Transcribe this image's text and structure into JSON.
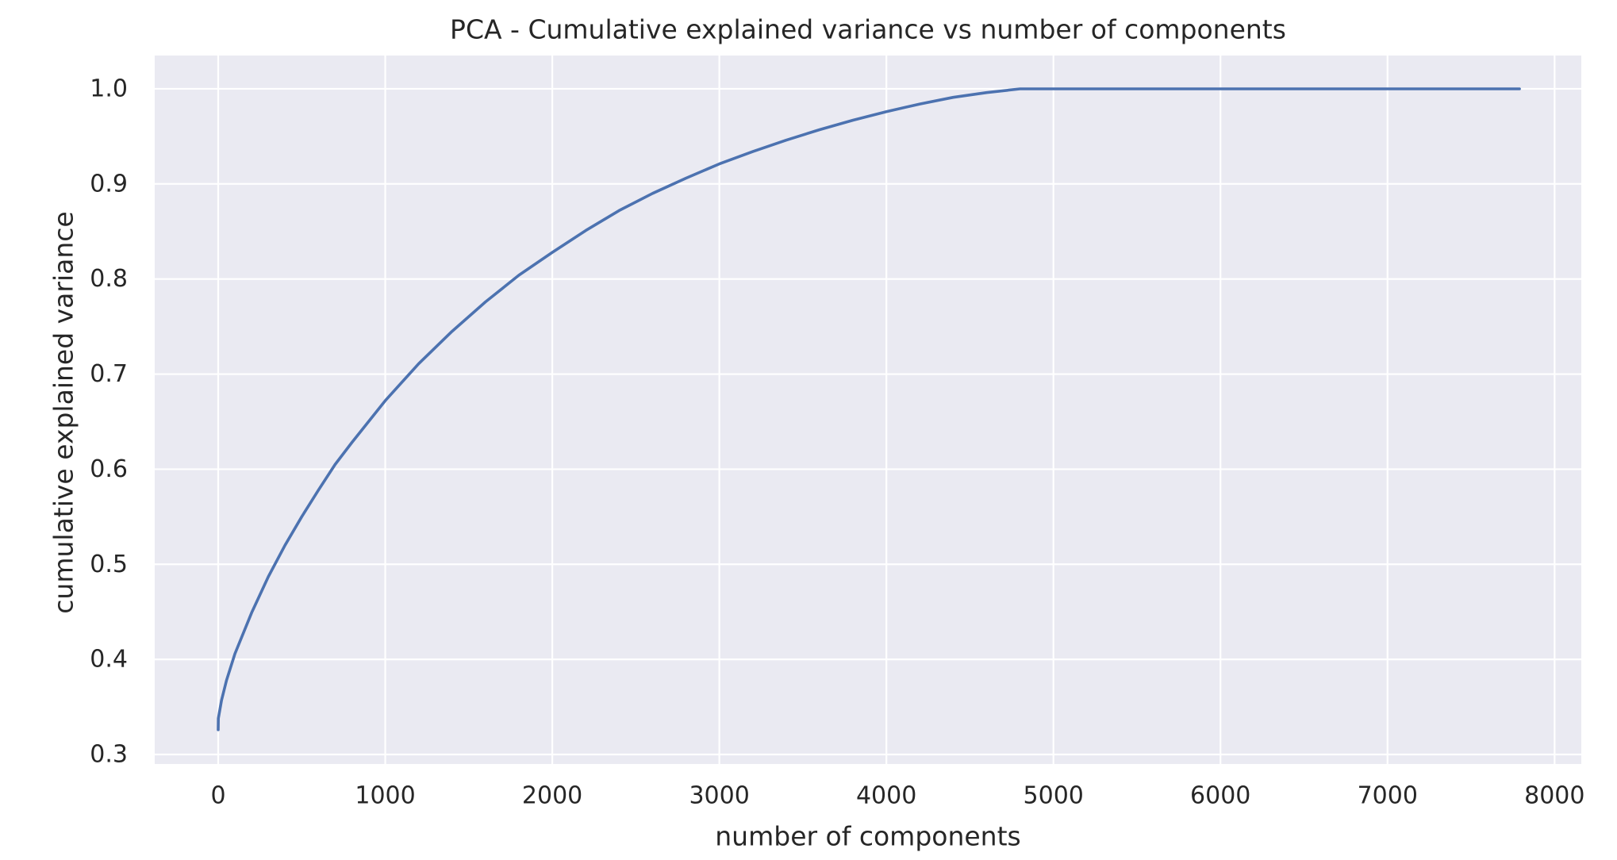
{
  "chart_data": {
    "type": "line",
    "title": "PCA - Cumulative explained variance vs number of components",
    "xlabel": "number of components",
    "ylabel": "cumulative explained variance",
    "xlim": [
      -380,
      8160
    ],
    "ylim": [
      0.29,
      1.035
    ],
    "xticks": [
      0,
      1000,
      2000,
      3000,
      4000,
      5000,
      6000,
      7000,
      8000
    ],
    "xtick_labels": [
      "0",
      "1000",
      "2000",
      "3000",
      "4000",
      "5000",
      "6000",
      "7000",
      "8000"
    ],
    "yticks": [
      0.3,
      0.4,
      0.5,
      0.6,
      0.7,
      0.8,
      0.9,
      1.0
    ],
    "ytick_labels": [
      "0.3",
      "0.4",
      "0.5",
      "0.6",
      "0.7",
      "0.8",
      "0.9",
      "1.0"
    ],
    "grid": true,
    "legend": "none",
    "series": [
      {
        "color": "#4C72B0",
        "x": [
          0,
          1,
          20,
          50,
          100,
          200,
          300,
          400,
          500,
          600,
          700,
          800,
          1000,
          1200,
          1400,
          1600,
          1800,
          2000,
          2200,
          2400,
          2600,
          2800,
          3000,
          3200,
          3400,
          3600,
          3800,
          4000,
          4200,
          4400,
          4600,
          4800,
          4810,
          5000,
          6000,
          7000,
          7790
        ],
        "y": [
          0.326,
          0.338,
          0.357,
          0.378,
          0.406,
          0.449,
          0.487,
          0.52,
          0.55,
          0.578,
          0.605,
          0.628,
          0.672,
          0.711,
          0.745,
          0.776,
          0.804,
          0.828,
          0.851,
          0.872,
          0.89,
          0.906,
          0.921,
          0.934,
          0.946,
          0.957,
          0.967,
          0.976,
          0.984,
          0.991,
          0.996,
          1.0,
          1.0,
          1.0,
          1.0,
          1.0,
          1.0
        ]
      }
    ]
  },
  "colors": {
    "plot_background": "#EAEAF2",
    "grid": "#FFFFFF",
    "text": "#262626"
  }
}
